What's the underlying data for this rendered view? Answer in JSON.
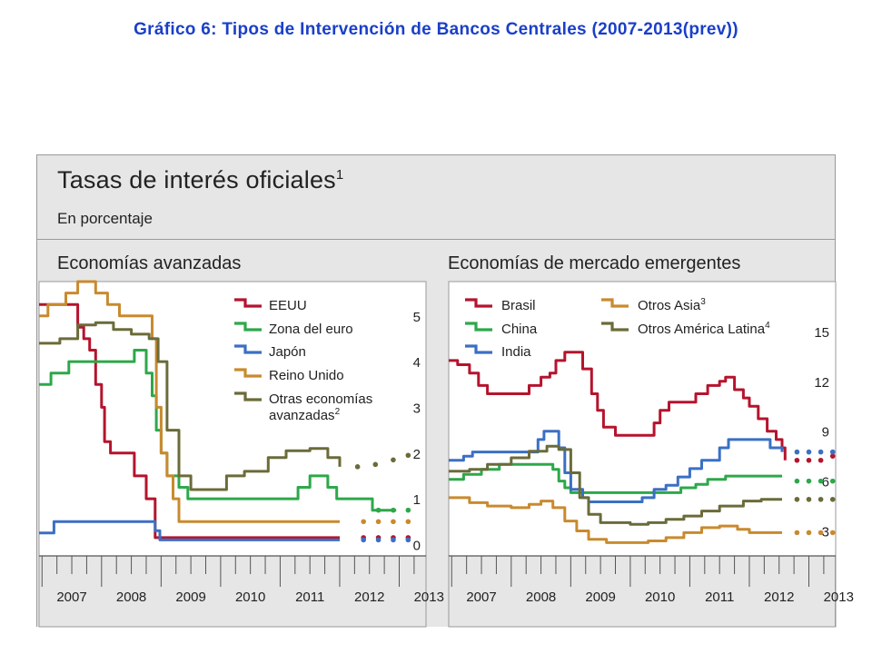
{
  "slide_title": "Gráfico 6: Tipos de Intervención de Bancos Centrales (2007-2013(prev))",
  "figure": {
    "title": "Tasas de interés oficiales",
    "title_sup": "1",
    "subtitle": "En porcentaje"
  },
  "colors": {
    "red": "#b5142d",
    "green": "#2da84a",
    "blue": "#3b6fc4",
    "orange": "#c98a2e",
    "olive": "#6b6b3a"
  },
  "chart_data": [
    {
      "type": "line",
      "panel_title": "Economías avanzadas",
      "x_tick_labels": [
        "2007",
        "2008",
        "2009",
        "2010",
        "2011",
        "2012",
        "2013"
      ],
      "xlim": [
        2006.95,
        2013.45
      ],
      "ylim": [
        -0.25,
        5.75
      ],
      "y_ticks": [
        0,
        1,
        2,
        3,
        4,
        5
      ],
      "y_axis_side": "right",
      "legend_position": "top-right",
      "forecast_marker": "dots (2012.5–2013)",
      "series": [
        {
          "name": "EEUU",
          "color": "red",
          "points": [
            [
              2006.95,
              5.25
            ],
            [
              2007.55,
              5.25
            ],
            [
              2007.6,
              4.75
            ],
            [
              2007.7,
              4.5
            ],
            [
              2007.8,
              4.25
            ],
            [
              2007.9,
              3.5
            ],
            [
              2008.0,
              3.0
            ],
            [
              2008.05,
              2.25
            ],
            [
              2008.15,
              2.0
            ],
            [
              2008.5,
              2.0
            ],
            [
              2008.55,
              1.5
            ],
            [
              2008.75,
              1.0
            ],
            [
              2008.9,
              0.15
            ],
            [
              2009.0,
              0.15
            ],
            [
              2012.0,
              0.15
            ]
          ],
          "forecast": [
            [
              2012.4,
              0.15
            ],
            [
              2012.65,
              0.15
            ],
            [
              2012.9,
              0.15
            ],
            [
              2013.15,
              0.15
            ]
          ]
        },
        {
          "name": "Zona del euro",
          "color": "green",
          "points": [
            [
              2006.95,
              3.5
            ],
            [
              2007.15,
              3.75
            ],
            [
              2007.45,
              4.0
            ],
            [
              2008.5,
              4.0
            ],
            [
              2008.55,
              4.25
            ],
            [
              2008.75,
              3.75
            ],
            [
              2008.85,
              3.25
            ],
            [
              2008.92,
              2.5
            ],
            [
              2009.0,
              2.0
            ],
            [
              2009.1,
              1.5
            ],
            [
              2009.3,
              1.25
            ],
            [
              2009.45,
              1.0
            ],
            [
              2011.25,
              1.0
            ],
            [
              2011.3,
              1.25
            ],
            [
              2011.5,
              1.5
            ],
            [
              2011.8,
              1.25
            ],
            [
              2011.95,
              1.0
            ],
            [
              2012.5,
              1.0
            ],
            [
              2012.55,
              0.75
            ],
            [
              2012.95,
              0.75
            ]
          ],
          "forecast": [
            [
              2012.65,
              0.75
            ],
            [
              2012.9,
              0.75
            ],
            [
              2013.15,
              0.75
            ]
          ]
        },
        {
          "name": "Japón",
          "color": "blue",
          "points": [
            [
              2006.95,
              0.25
            ],
            [
              2007.15,
              0.25
            ],
            [
              2007.2,
              0.5
            ],
            [
              2008.85,
              0.5
            ],
            [
              2008.9,
              0.3
            ],
            [
              2008.98,
              0.1
            ],
            [
              2012.0,
              0.1
            ]
          ],
          "forecast": [
            [
              2012.4,
              0.1
            ],
            [
              2012.65,
              0.1
            ],
            [
              2012.9,
              0.1
            ],
            [
              2013.15,
              0.1
            ]
          ]
        },
        {
          "name": "Reino Unido",
          "color": "orange",
          "points": [
            [
              2006.95,
              5.0
            ],
            [
              2007.1,
              5.25
            ],
            [
              2007.4,
              5.5
            ],
            [
              2007.6,
              5.75
            ],
            [
              2007.9,
              5.5
            ],
            [
              2008.1,
              5.25
            ],
            [
              2008.3,
              5.0
            ],
            [
              2008.75,
              5.0
            ],
            [
              2008.85,
              4.5
            ],
            [
              2008.92,
              3.0
            ],
            [
              2009.0,
              2.0
            ],
            [
              2009.1,
              1.5
            ],
            [
              2009.2,
              1.0
            ],
            [
              2009.3,
              0.5
            ],
            [
              2012.0,
              0.5
            ]
          ],
          "forecast": [
            [
              2012.4,
              0.5
            ],
            [
              2012.65,
              0.5
            ],
            [
              2012.9,
              0.5
            ],
            [
              2013.15,
              0.5
            ]
          ]
        },
        {
          "name": "Otras economías avanzadas",
          "name_sup": "2",
          "color": "olive",
          "points": [
            [
              2006.95,
              4.4
            ],
            [
              2007.3,
              4.5
            ],
            [
              2007.6,
              4.8
            ],
            [
              2007.9,
              4.85
            ],
            [
              2008.2,
              4.7
            ],
            [
              2008.5,
              4.6
            ],
            [
              2008.8,
              4.5
            ],
            [
              2008.95,
              4.0
            ],
            [
              2009.1,
              2.5
            ],
            [
              2009.3,
              1.5
            ],
            [
              2009.5,
              1.2
            ],
            [
              2009.8,
              1.2
            ],
            [
              2010.1,
              1.5
            ],
            [
              2010.4,
              1.6
            ],
            [
              2010.8,
              1.9
            ],
            [
              2011.1,
              2.05
            ],
            [
              2011.5,
              2.1
            ],
            [
              2011.8,
              1.9
            ],
            [
              2012.0,
              1.7
            ]
          ],
          "forecast": [
            [
              2012.3,
              1.7
            ],
            [
              2012.6,
              1.75
            ],
            [
              2012.9,
              1.85
            ],
            [
              2013.15,
              1.95
            ]
          ]
        }
      ]
    },
    {
      "type": "line",
      "panel_title": "Economías de mercado emergentes",
      "x_tick_labels": [
        "2007",
        "2008",
        "2009",
        "2010",
        "2011",
        "2012",
        "2013"
      ],
      "xlim": [
        2006.95,
        2013.45
      ],
      "ylim": [
        1.5,
        18.0
      ],
      "y_ticks": [
        3,
        6,
        9,
        12,
        15
      ],
      "y_axis_side": "right",
      "legend_position": "top",
      "forecast_marker": "dots (2012.3–2013)",
      "series": [
        {
          "name": "Brasil",
          "color": "red",
          "points": [
            [
              2006.95,
              13.25
            ],
            [
              2007.1,
              13.0
            ],
            [
              2007.3,
              12.5
            ],
            [
              2007.45,
              11.75
            ],
            [
              2007.6,
              11.25
            ],
            [
              2008.2,
              11.25
            ],
            [
              2008.3,
              11.75
            ],
            [
              2008.5,
              12.25
            ],
            [
              2008.65,
              12.5
            ],
            [
              2008.75,
              13.25
            ],
            [
              2008.9,
              13.75
            ],
            [
              2009.15,
              13.75
            ],
            [
              2009.2,
              12.75
            ],
            [
              2009.35,
              11.25
            ],
            [
              2009.45,
              10.25
            ],
            [
              2009.55,
              9.25
            ],
            [
              2009.75,
              8.75
            ],
            [
              2010.3,
              8.75
            ],
            [
              2010.4,
              9.5
            ],
            [
              2010.5,
              10.25
            ],
            [
              2010.65,
              10.75
            ],
            [
              2011.0,
              10.75
            ],
            [
              2011.1,
              11.25
            ],
            [
              2011.3,
              11.75
            ],
            [
              2011.5,
              12.0
            ],
            [
              2011.6,
              12.25
            ],
            [
              2011.75,
              11.5
            ],
            [
              2011.9,
              11.0
            ],
            [
              2012.0,
              10.5
            ],
            [
              2012.15,
              9.75
            ],
            [
              2012.3,
              9.0
            ],
            [
              2012.45,
              8.5
            ],
            [
              2012.55,
              8.0
            ],
            [
              2012.6,
              7.25
            ]
          ],
          "forecast": [
            [
              2012.8,
              7.25
            ],
            [
              2013.0,
              7.25
            ],
            [
              2013.2,
              7.25
            ],
            [
              2013.4,
              7.5
            ]
          ]
        },
        {
          "name": "China",
          "color": "green",
          "points": [
            [
              2006.95,
              6.1
            ],
            [
              2007.2,
              6.4
            ],
            [
              2007.5,
              6.7
            ],
            [
              2007.8,
              7.0
            ],
            [
              2008.5,
              7.0
            ],
            [
              2008.7,
              6.7
            ],
            [
              2008.8,
              6.0
            ],
            [
              2008.9,
              5.6
            ],
            [
              2009.0,
              5.3
            ],
            [
              2010.75,
              5.3
            ],
            [
              2010.85,
              5.6
            ],
            [
              2011.1,
              5.8
            ],
            [
              2011.3,
              6.1
            ],
            [
              2011.6,
              6.3
            ],
            [
              2012.55,
              6.3
            ]
          ],
          "forecast": [
            [
              2012.8,
              6.0
            ],
            [
              2013.0,
              6.0
            ],
            [
              2013.2,
              6.0
            ],
            [
              2013.4,
              6.0
            ]
          ]
        },
        {
          "name": "India",
          "color": "blue",
          "points": [
            [
              2006.95,
              7.25
            ],
            [
              2007.2,
              7.5
            ],
            [
              2007.35,
              7.75
            ],
            [
              2008.4,
              7.75
            ],
            [
              2008.45,
              8.5
            ],
            [
              2008.55,
              9.0
            ],
            [
              2008.7,
              9.0
            ],
            [
              2008.8,
              8.0
            ],
            [
              2008.9,
              6.5
            ],
            [
              2009.0,
              5.5
            ],
            [
              2009.2,
              5.0
            ],
            [
              2009.3,
              4.75
            ],
            [
              2010.05,
              4.75
            ],
            [
              2010.2,
              5.0
            ],
            [
              2010.4,
              5.5
            ],
            [
              2010.6,
              5.75
            ],
            [
              2010.8,
              6.25
            ],
            [
              2011.0,
              6.75
            ],
            [
              2011.2,
              7.25
            ],
            [
              2011.5,
              8.0
            ],
            [
              2011.65,
              8.5
            ],
            [
              2012.2,
              8.5
            ],
            [
              2012.35,
              8.0
            ],
            [
              2012.55,
              7.75
            ]
          ],
          "forecast": [
            [
              2012.8,
              7.75
            ],
            [
              2013.0,
              7.75
            ],
            [
              2013.2,
              7.75
            ],
            [
              2013.4,
              7.75
            ]
          ]
        },
        {
          "name": "Otros Asia",
          "name_sup": "3",
          "color": "orange",
          "points": [
            [
              2006.95,
              5.0
            ],
            [
              2007.3,
              4.7
            ],
            [
              2007.6,
              4.5
            ],
            [
              2008.0,
              4.4
            ],
            [
              2008.3,
              4.6
            ],
            [
              2008.5,
              4.8
            ],
            [
              2008.7,
              4.4
            ],
            [
              2008.9,
              3.6
            ],
            [
              2009.1,
              3.0
            ],
            [
              2009.3,
              2.5
            ],
            [
              2009.6,
              2.3
            ],
            [
              2010.0,
              2.3
            ],
            [
              2010.3,
              2.4
            ],
            [
              2010.6,
              2.6
            ],
            [
              2010.9,
              2.9
            ],
            [
              2011.2,
              3.2
            ],
            [
              2011.5,
              3.3
            ],
            [
              2011.8,
              3.1
            ],
            [
              2012.0,
              2.9
            ],
            [
              2012.55,
              2.9
            ]
          ],
          "forecast": [
            [
              2012.8,
              2.9
            ],
            [
              2013.0,
              2.9
            ],
            [
              2013.2,
              2.9
            ],
            [
              2013.4,
              2.9
            ]
          ]
        },
        {
          "name": "Otros América Latina",
          "name_sup": "4",
          "color": "olive",
          "points": [
            [
              2006.95,
              6.6
            ],
            [
              2007.3,
              6.7
            ],
            [
              2007.6,
              7.0
            ],
            [
              2008.0,
              7.4
            ],
            [
              2008.3,
              7.8
            ],
            [
              2008.6,
              8.1
            ],
            [
              2008.8,
              7.9
            ],
            [
              2009.0,
              6.5
            ],
            [
              2009.15,
              5.0
            ],
            [
              2009.3,
              4.0
            ],
            [
              2009.5,
              3.5
            ],
            [
              2010.0,
              3.4
            ],
            [
              2010.3,
              3.5
            ],
            [
              2010.6,
              3.7
            ],
            [
              2010.9,
              3.9
            ],
            [
              2011.2,
              4.2
            ],
            [
              2011.5,
              4.5
            ],
            [
              2011.9,
              4.8
            ],
            [
              2012.2,
              4.9
            ],
            [
              2012.55,
              4.9
            ]
          ],
          "forecast": [
            [
              2012.8,
              4.9
            ],
            [
              2013.0,
              4.9
            ],
            [
              2013.2,
              4.9
            ],
            [
              2013.4,
              4.9
            ]
          ]
        }
      ]
    }
  ]
}
